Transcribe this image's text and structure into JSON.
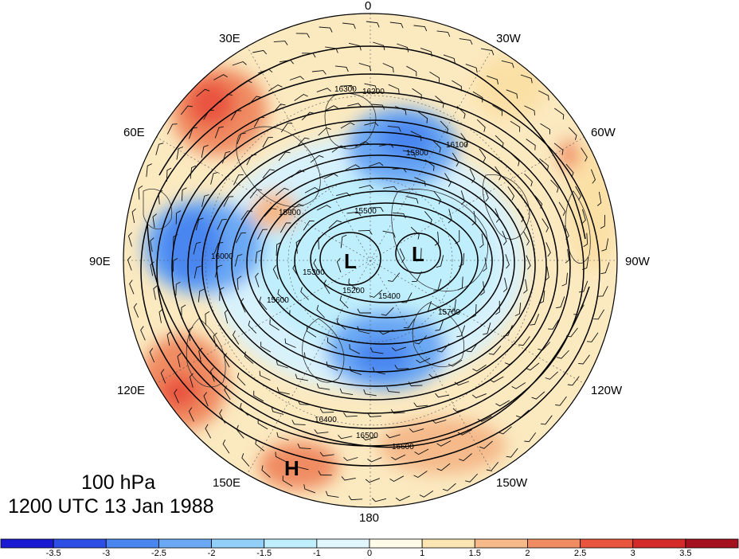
{
  "title": {
    "level": "100 hPa",
    "time": "1200 UTC 13 Jan 1988"
  },
  "longitude_labels": [
    "0",
    "30W",
    "60W",
    "90W",
    "120W",
    "150W",
    "180",
    "150E",
    "120E",
    "90E",
    "60E",
    "30E"
  ],
  "pressure_centers": [
    "L",
    "L",
    "H"
  ],
  "contour_labels": [
    "15200",
    "15300",
    "15400",
    "15500",
    "15600",
    "15700",
    "15800",
    "15900",
    "16000",
    "16100",
    "16200",
    "16300",
    "16400",
    "16500",
    "16600"
  ],
  "colorbar": {
    "ticks": [
      "-3.5",
      "-3",
      "-2.5",
      "-2",
      "-1.5",
      "-1",
      "0",
      "1",
      "1.5",
      "2",
      "2.5",
      "3",
      "3.5"
    ],
    "colors": [
      "#1a1ad2",
      "#2d4fe6",
      "#4a86f0",
      "#6aa8f4",
      "#92d0fa",
      "#bfeefc",
      "#e2f6fd",
      "#fefce8",
      "#fbe6b3",
      "#f5b98a",
      "#f08b62",
      "#e9543f",
      "#d42a2a",
      "#a5101e"
    ]
  }
}
